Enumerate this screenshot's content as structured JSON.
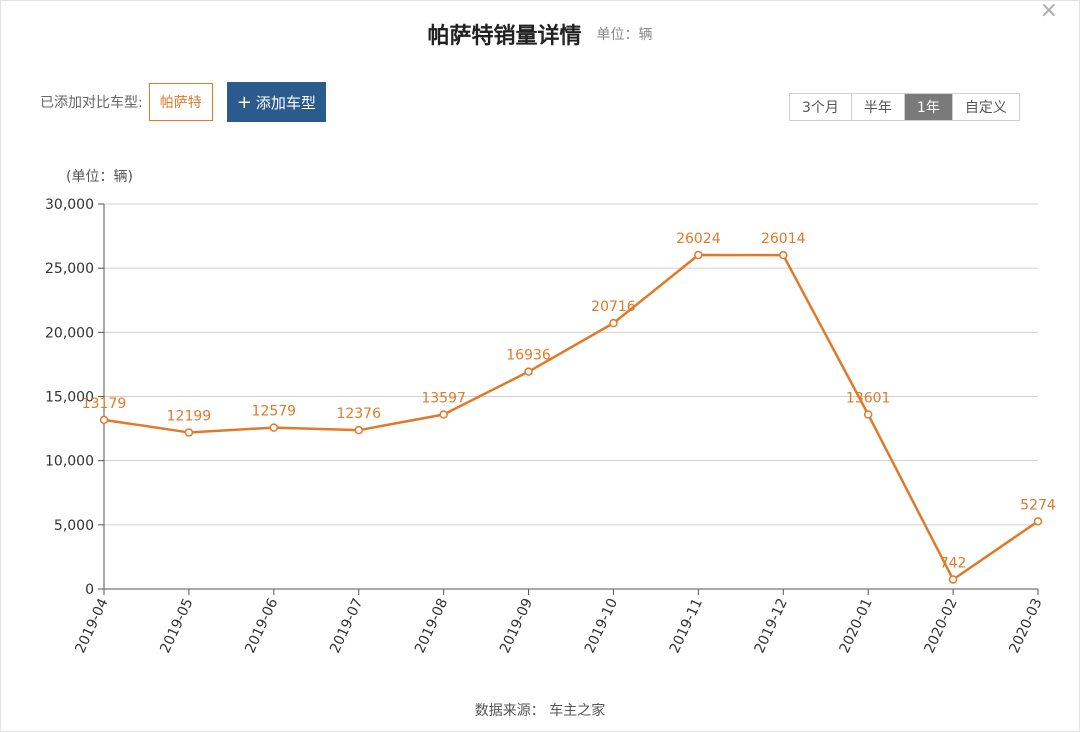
{
  "header": {
    "title": "帕萨特销量详情",
    "unit": "单位：辆"
  },
  "compare": {
    "label": "已添加对比车型:",
    "selected_car": "帕萨特",
    "add_button_label": "添加车型",
    "add_icon": "plus-icon"
  },
  "range_tabs": [
    {
      "label": "3个月",
      "active": false
    },
    {
      "label": "半年",
      "active": false
    },
    {
      "label": "1年",
      "active": true
    },
    {
      "label": "自定义",
      "active": false
    }
  ],
  "close_icon": "close-icon",
  "footer": {
    "source": "数据来源： 车主之家"
  },
  "chart_data": {
    "type": "line",
    "title": "帕萨特销量详情",
    "y_unit_label": "(单位：辆)",
    "x": [
      "2019-04",
      "2019-05",
      "2019-06",
      "2019-07",
      "2019-08",
      "2019-09",
      "2019-10",
      "2019-11",
      "2019-12",
      "2020-01",
      "2020-02",
      "2020-03"
    ],
    "series": [
      {
        "values": [
          13179,
          12199,
          12579,
          12376,
          13597,
          16936,
          20716,
          26024,
          26014,
          13601,
          742,
          5274
        ],
        "value_labels": [
          "13179",
          "12199",
          "12579",
          "12376",
          "13597",
          "16936",
          "20716",
          "26024",
          "26014",
          "13601",
          "742",
          "5274"
        ]
      }
    ],
    "ylim": [
      0,
      30000
    ],
    "y_ticks": [
      0,
      5000,
      10000,
      15000,
      20000,
      25000,
      30000
    ],
    "y_tick_labels": [
      "0",
      "5,000",
      "10,000",
      "15,000",
      "20,000",
      "25,000",
      "30,000"
    ],
    "grid": true,
    "line_color": "#e07a2a",
    "grid_color": "#d0d0d0"
  }
}
